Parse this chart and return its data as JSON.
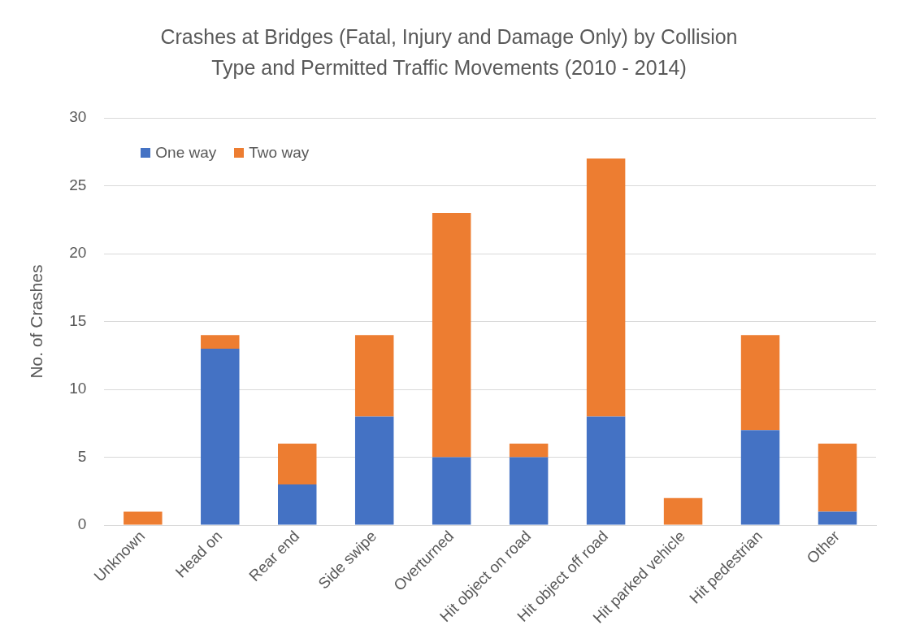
{
  "chart_data": {
    "type": "bar",
    "title": "Crashes at Bridges (Fatal, Injury and Damage Only) by Collision Type and Permitted Traffic Movements (2010 - 2014)",
    "ylabel": "No. of Crashes",
    "categories": [
      "Unknown",
      "Head on",
      "Rear end",
      "Side swipe",
      "Overturned",
      "Hit object on road",
      "Hit object off road",
      "Hit parked vehicle",
      "Hit pedestrian",
      "Other"
    ],
    "stacked": true,
    "series": [
      {
        "name": "One way",
        "color": "#4472c4",
        "values": [
          0,
          13,
          3,
          8,
          5,
          5,
          8,
          0,
          7,
          1
        ]
      },
      {
        "name": "Two way",
        "color": "#ed7d31",
        "values": [
          1,
          1,
          3,
          6,
          18,
          1,
          19,
          2,
          7,
          5
        ]
      }
    ],
    "ylim": [
      0,
      30
    ],
    "yticks": [
      0,
      5,
      10,
      15,
      20,
      25,
      30
    ],
    "grid": "y",
    "legend": "top left"
  }
}
